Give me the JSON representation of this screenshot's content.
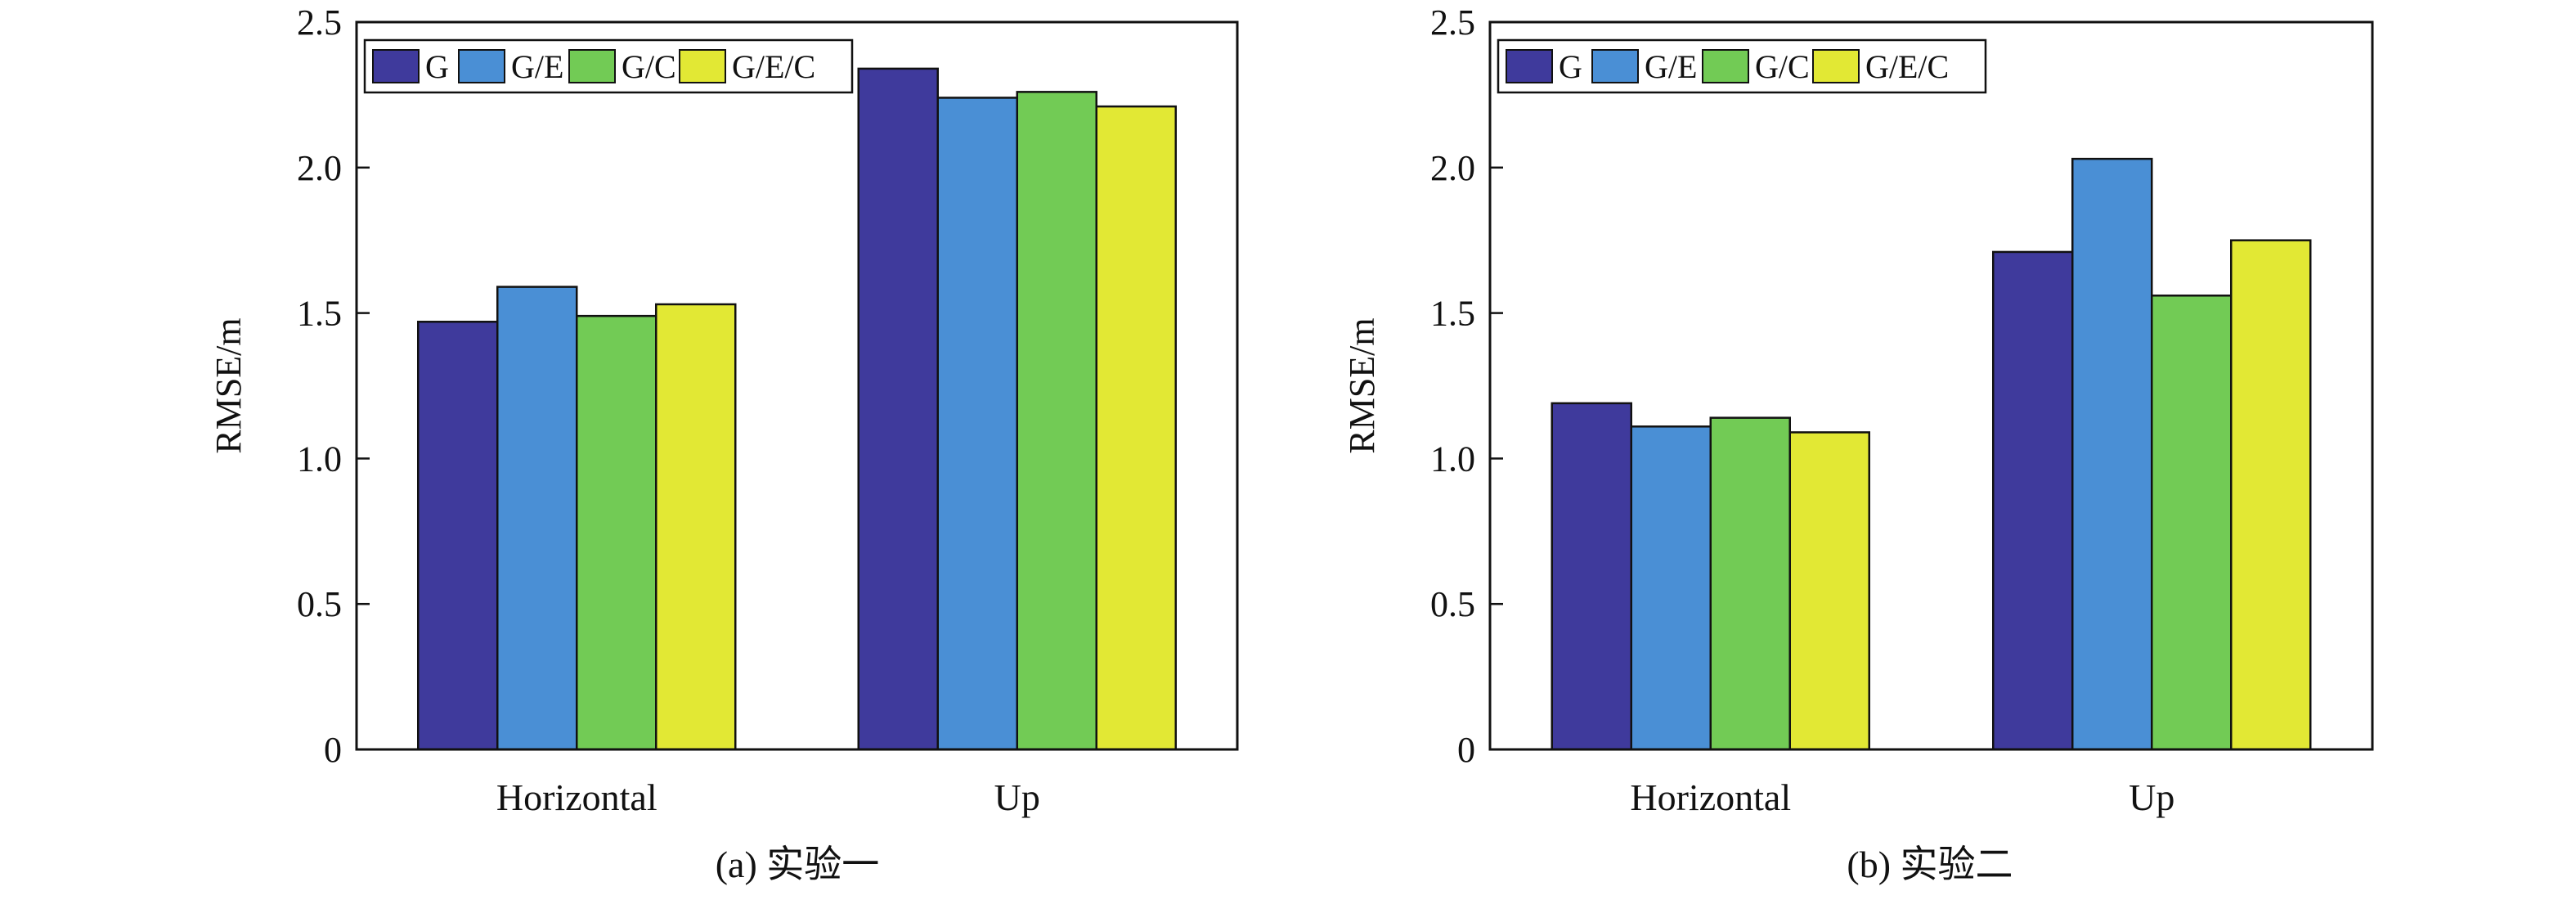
{
  "chart_data": [
    {
      "type": "bar",
      "title": "",
      "caption": "(a) 实验一",
      "xlabel": "",
      "ylabel": "RMSE/m",
      "ylim": [
        0,
        2.5
      ],
      "yticks": [
        0,
        0.5,
        1.0,
        1.5,
        2.0,
        2.5
      ],
      "ytick_labels": [
        "0",
        "0.5",
        "1.0",
        "1.5",
        "2.0",
        "2.5"
      ],
      "categories": [
        "Horizontal",
        "Up"
      ],
      "series": [
        {
          "name": "G",
          "values": [
            1.47,
            2.34
          ],
          "color": "#3f3a9c"
        },
        {
          "name": "G/E",
          "values": [
            1.59,
            2.24
          ],
          "color": "#4a8fd5"
        },
        {
          "name": "G/C",
          "values": [
            1.49,
            2.26
          ],
          "color": "#72cb55"
        },
        {
          "name": "G/E/C",
          "values": [
            1.53,
            2.21
          ],
          "color": "#e2e834"
        }
      ],
      "legend_position": "top-left",
      "grid": false
    },
    {
      "type": "bar",
      "title": "",
      "caption": "(b) 实验二",
      "xlabel": "",
      "ylabel": "RMSE/m",
      "ylim": [
        0,
        2.5
      ],
      "yticks": [
        0,
        0.5,
        1.0,
        1.5,
        2.0,
        2.5
      ],
      "ytick_labels": [
        "0",
        "0.5",
        "1.0",
        "1.5",
        "2.0",
        "2.5"
      ],
      "categories": [
        "Horizontal",
        "Up"
      ],
      "series": [
        {
          "name": "G",
          "values": [
            1.19,
            1.71
          ],
          "color": "#3f3a9c"
        },
        {
          "name": "G/E",
          "values": [
            1.11,
            2.03
          ],
          "color": "#4a8fd5"
        },
        {
          "name": "G/C",
          "values": [
            1.14,
            1.56
          ],
          "color": "#72cb55"
        },
        {
          "name": "G/E/C",
          "values": [
            1.09,
            1.75
          ],
          "color": "#e2e834"
        }
      ],
      "legend_position": "top-left",
      "grid": false
    }
  ]
}
